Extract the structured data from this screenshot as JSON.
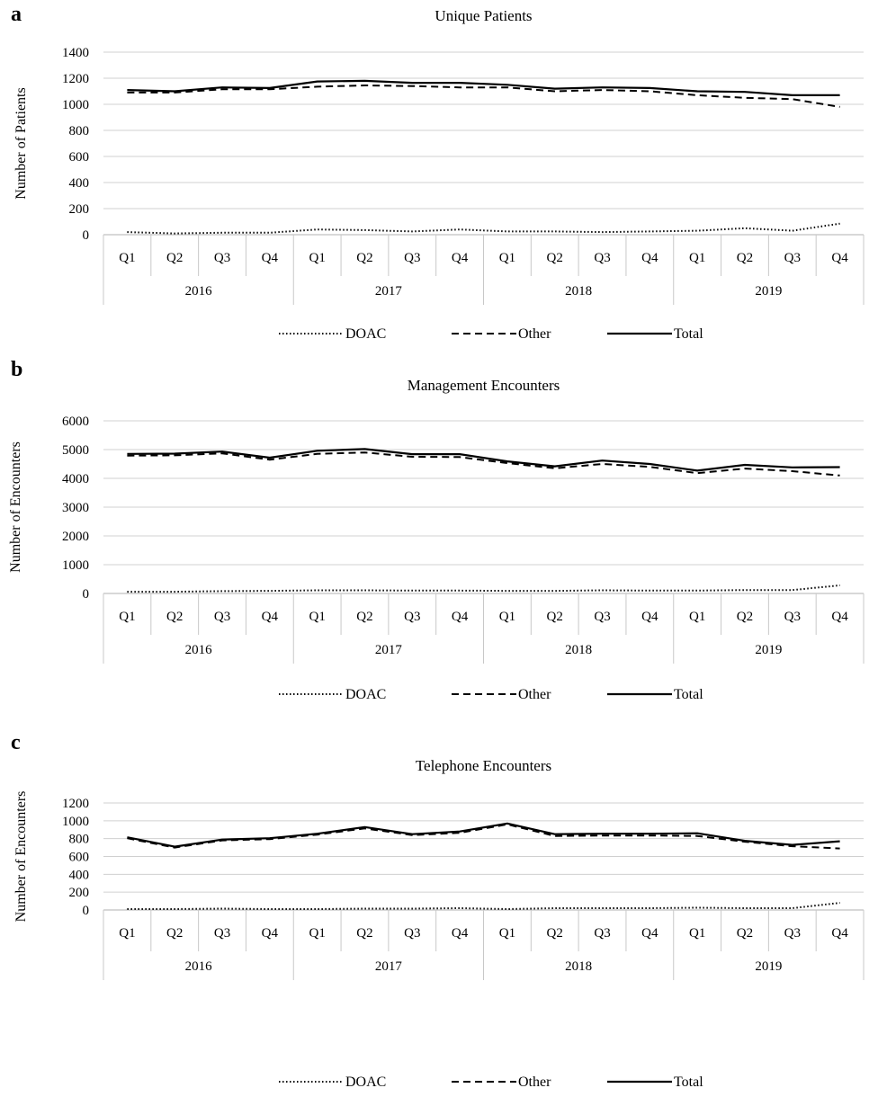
{
  "chart_data": [
    {
      "type": "line",
      "panel": "a",
      "title": "Unique Patients",
      "ylabel": "Number of Patients",
      "xlabel": "",
      "ylim": [
        0,
        1400
      ],
      "yticks": [
        0,
        200,
        400,
        600,
        800,
        1000,
        1200,
        1400
      ],
      "grid": true,
      "legend_position": "bottom",
      "categories": [
        "Q1",
        "Q2",
        "Q3",
        "Q4",
        "Q1",
        "Q2",
        "Q3",
        "Q4",
        "Q1",
        "Q2",
        "Q3",
        "Q4",
        "Q1",
        "Q2",
        "Q3",
        "Q4"
      ],
      "groups": [
        "2016",
        "2017",
        "2018",
        "2019"
      ],
      "series": [
        {
          "name": "DOAC",
          "style": "dotted",
          "values": [
            20,
            10,
            15,
            15,
            40,
            35,
            25,
            40,
            25,
            25,
            20,
            25,
            30,
            50,
            30,
            85
          ]
        },
        {
          "name": "Other",
          "style": "dashed",
          "values": [
            1090,
            1090,
            1115,
            1115,
            1135,
            1145,
            1140,
            1130,
            1130,
            1100,
            1110,
            1100,
            1070,
            1050,
            1040,
            980
          ]
        },
        {
          "name": "Total",
          "style": "solid",
          "values": [
            1110,
            1100,
            1130,
            1125,
            1175,
            1180,
            1165,
            1165,
            1150,
            1120,
            1130,
            1125,
            1100,
            1095,
            1070,
            1070
          ]
        }
      ]
    },
    {
      "type": "line",
      "panel": "b",
      "title": "Management Encounters",
      "ylabel": "Number of Encounters",
      "xlabel": "",
      "ylim": [
        0,
        6000
      ],
      "yticks": [
        0,
        1000,
        2000,
        3000,
        4000,
        5000,
        6000
      ],
      "grid": true,
      "legend_position": "bottom",
      "categories": [
        "Q1",
        "Q2",
        "Q3",
        "Q4",
        "Q1",
        "Q2",
        "Q3",
        "Q4",
        "Q1",
        "Q2",
        "Q3",
        "Q4",
        "Q1",
        "Q2",
        "Q3",
        "Q4"
      ],
      "groups": [
        "2016",
        "2017",
        "2018",
        "2019"
      ],
      "series": [
        {
          "name": "DOAC",
          "style": "dotted",
          "values": [
            60,
            60,
            80,
            90,
            110,
            110,
            100,
            100,
            90,
            90,
            110,
            100,
            100,
            120,
            120,
            280
          ]
        },
        {
          "name": "Other",
          "style": "dashed",
          "values": [
            4790,
            4800,
            4870,
            4650,
            4850,
            4900,
            4750,
            4740,
            4530,
            4350,
            4500,
            4400,
            4180,
            4340,
            4250,
            4100
          ]
        },
        {
          "name": "Total",
          "style": "solid",
          "values": [
            4850,
            4860,
            4930,
            4720,
            4960,
            5020,
            4840,
            4840,
            4590,
            4420,
            4620,
            4500,
            4270,
            4470,
            4380,
            4390
          ]
        }
      ]
    },
    {
      "type": "line",
      "panel": "c",
      "title": "Telephone Encounters",
      "ylabel": "Number of Encounters",
      "xlabel": "",
      "ylim": [
        0,
        1200
      ],
      "yticks": [
        0,
        200,
        400,
        600,
        800,
        1000,
        1200
      ],
      "grid": true,
      "legend_position": "bottom",
      "categories": [
        "Q1",
        "Q2",
        "Q3",
        "Q4",
        "Q1",
        "Q2",
        "Q3",
        "Q4",
        "Q1",
        "Q2",
        "Q3",
        "Q4",
        "Q1",
        "Q2",
        "Q3",
        "Q4"
      ],
      "groups": [
        "2016",
        "2017",
        "2018",
        "2019"
      ],
      "series": [
        {
          "name": "DOAC",
          "style": "dotted",
          "values": [
            10,
            10,
            15,
            10,
            10,
            15,
            15,
            20,
            10,
            20,
            20,
            20,
            25,
            20,
            20,
            80
          ]
        },
        {
          "name": "Other",
          "style": "dashed",
          "values": [
            805,
            700,
            780,
            795,
            845,
            915,
            840,
            865,
            960,
            830,
            835,
            835,
            830,
            765,
            715,
            690
          ]
        },
        {
          "name": "Total",
          "style": "solid",
          "values": [
            815,
            710,
            790,
            805,
            855,
            930,
            850,
            880,
            970,
            850,
            855,
            855,
            860,
            775,
            730,
            770
          ]
        }
      ]
    }
  ]
}
